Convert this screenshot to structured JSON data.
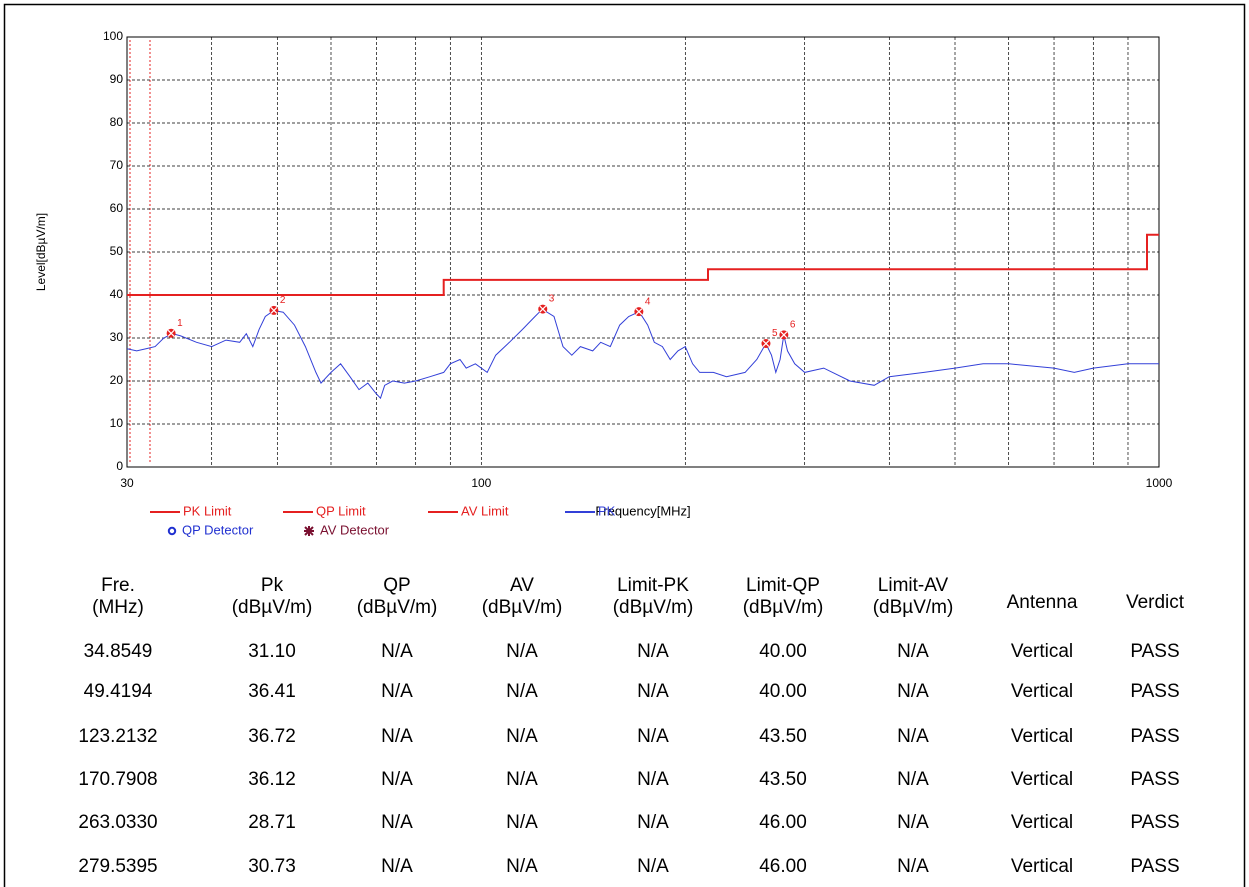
{
  "chart_data": {
    "type": "line",
    "xscale": "log",
    "grid": true,
    "xlabel": "Frequency[MHz]",
    "ylabel": "Level[dBµV/m]",
    "xlim": [
      30,
      1000
    ],
    "xticks": [
      30,
      100,
      1000
    ],
    "xminorticks": [
      40,
      50,
      60,
      70,
      80,
      90,
      200,
      300,
      400,
      500,
      600,
      700,
      800,
      900
    ],
    "ylim": [
      0,
      100
    ],
    "yticks": [
      0,
      10,
      20,
      30,
      40,
      50,
      60,
      70,
      80,
      90,
      100
    ],
    "series": [
      {
        "name": "PK Limit",
        "color": "#e52020",
        "x": [
          30,
          88,
          88,
          216,
          216,
          960,
          960,
          1000
        ],
        "values": [
          40,
          40,
          43.5,
          43.5,
          46,
          46,
          54,
          54
        ]
      },
      {
        "name": "PK",
        "color": "#3340d8",
        "x": [
          30,
          31,
          32,
          33,
          34,
          35,
          36,
          38,
          40,
          42,
          44,
          45,
          46,
          47,
          48,
          49.4,
          51,
          53,
          55,
          57,
          58,
          60,
          62,
          64,
          66,
          68,
          70,
          71,
          72,
          74,
          77,
          80,
          84,
          88,
          90,
          93,
          95,
          98,
          102,
          105,
          110,
          115,
          120,
          123,
          128,
          132,
          136,
          140,
          146,
          150,
          155,
          160,
          165,
          171,
          176,
          180,
          185,
          190,
          195,
          200,
          205,
          210,
          220,
          230,
          245,
          255,
          263,
          268,
          272,
          276,
          279.5,
          283,
          290,
          300,
          320,
          350,
          380,
          400,
          450,
          500,
          550,
          600,
          700,
          750,
          800,
          900,
          1000
        ],
        "values": [
          27.5,
          27,
          27.5,
          28,
          30,
          31,
          30.5,
          29,
          28,
          29.5,
          29,
          31,
          28,
          32,
          35,
          36.4,
          36,
          33,
          28,
          22,
          19.5,
          22,
          24,
          21,
          18,
          19.5,
          17,
          16,
          19,
          20,
          19.5,
          20,
          21,
          22,
          24,
          25,
          23,
          24,
          22,
          26,
          29,
          32,
          35,
          36.7,
          35,
          28,
          26,
          28,
          27,
          29,
          28,
          33,
          35,
          36.1,
          33,
          29,
          28,
          25,
          27,
          28,
          24,
          22,
          22,
          21,
          22,
          25,
          28.7,
          26,
          22,
          25,
          30.7,
          27,
          24,
          22,
          23,
          20,
          19,
          21,
          22,
          23,
          24,
          24,
          23,
          22,
          23,
          24,
          24
        ]
      }
    ],
    "legend": [
      {
        "name": "PK Limit",
        "color": "#e52020",
        "symbol": "line"
      },
      {
        "name": "QP Limit",
        "color": "#e52020",
        "symbol": "line"
      },
      {
        "name": "AV Limit",
        "color": "#e52020",
        "symbol": "line"
      },
      {
        "name": "PK",
        "color": "#3340d8",
        "symbol": "line"
      },
      {
        "name": "QP Detector",
        "color": "#2030d0",
        "symbol": "circle"
      },
      {
        "name": "AV Detector",
        "color": "#7a1030",
        "symbol": "star"
      }
    ],
    "markers": {
      "color": "#e52020",
      "labels": [
        "1",
        "2",
        "3",
        "4",
        "5",
        "6"
      ],
      "x": [
        34.8549,
        49.4194,
        123.2132,
        170.7908,
        263.033,
        279.5395
      ],
      "values": [
        31.1,
        36.41,
        36.72,
        36.12,
        28.71,
        30.73
      ]
    }
  },
  "table": {
    "headers": [
      [
        "Fre.",
        "(MHz)"
      ],
      [
        "Pk",
        "(dBµV/m)"
      ],
      [
        "QP",
        "(dBµV/m)"
      ],
      [
        "AV",
        "(dBµV/m)"
      ],
      [
        "Limit-PK",
        "(dBµV/m)"
      ],
      [
        "Limit-QP",
        "(dBµV/m)"
      ],
      [
        "Limit-AV",
        "(dBµV/m)"
      ],
      [
        "Antenna"
      ],
      [
        "Verdict"
      ]
    ],
    "rows": [
      [
        "34.8549",
        "31.10",
        "N/A",
        "N/A",
        "N/A",
        "40.00",
        "N/A",
        "Vertical",
        "PASS"
      ],
      [
        "49.4194",
        "36.41",
        "N/A",
        "N/A",
        "N/A",
        "40.00",
        "N/A",
        "Vertical",
        "PASS"
      ],
      [
        "123.2132",
        "36.72",
        "N/A",
        "N/A",
        "N/A",
        "43.50",
        "N/A",
        "Vertical",
        "PASS"
      ],
      [
        "170.7908",
        "36.12",
        "N/A",
        "N/A",
        "N/A",
        "43.50",
        "N/A",
        "Vertical",
        "PASS"
      ],
      [
        "263.0330",
        "28.71",
        "N/A",
        "N/A",
        "N/A",
        "46.00",
        "N/A",
        "Vertical",
        "PASS"
      ],
      [
        "279.5395",
        "30.73",
        "N/A",
        "N/A",
        "N/A",
        "46.00",
        "N/A",
        "Vertical",
        "PASS"
      ]
    ]
  }
}
